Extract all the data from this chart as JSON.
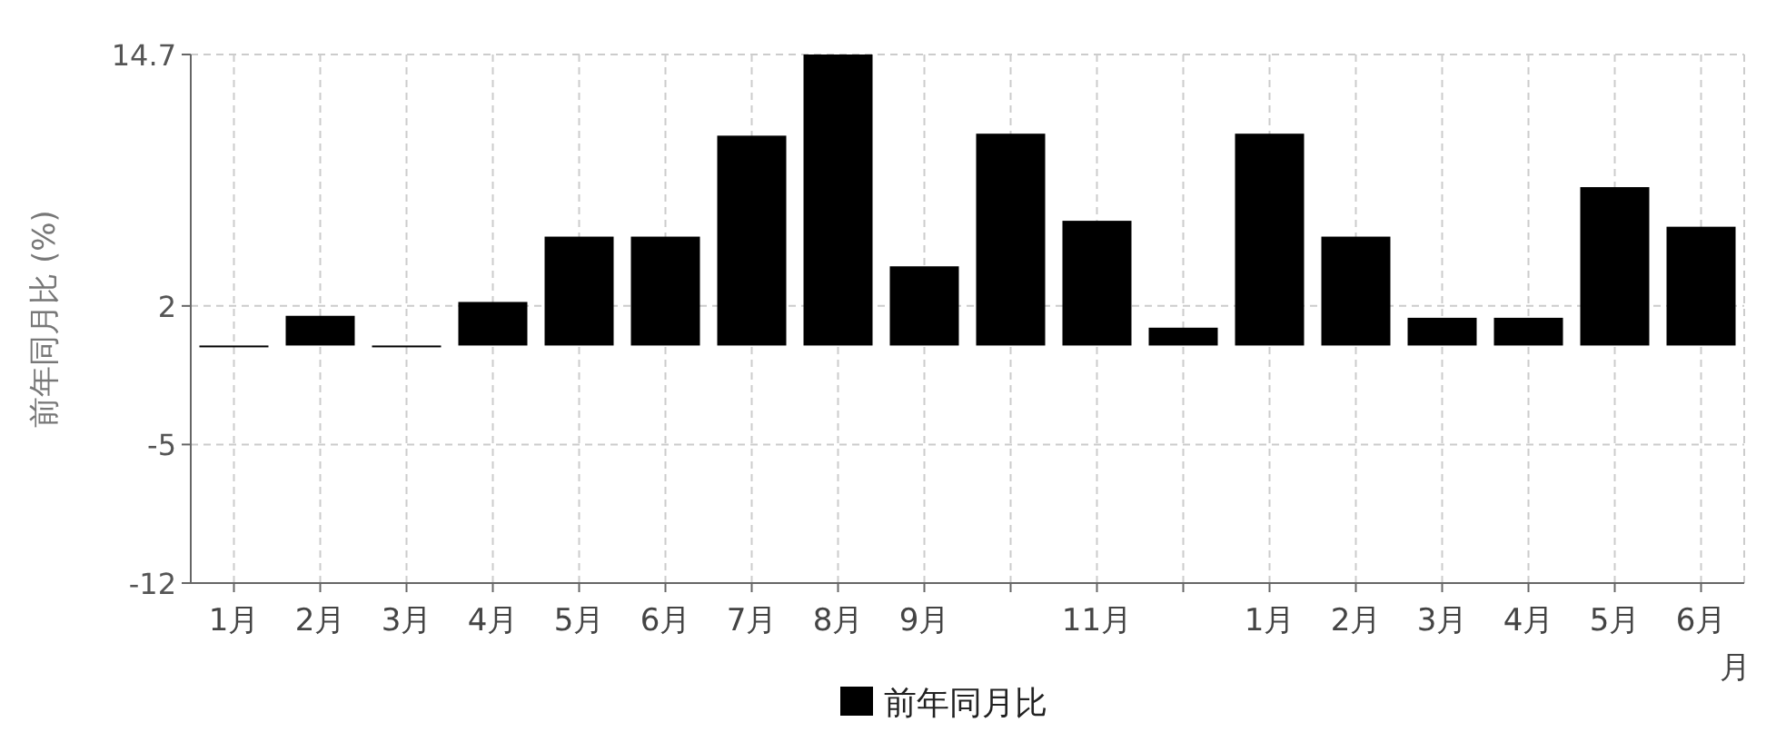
{
  "chart_data": {
    "type": "bar",
    "xlabel": "月",
    "ylabel": "前年同月比 (%)",
    "categories": [
      "1月",
      "2月",
      "3月",
      "4月",
      "5月",
      "6月",
      "7月",
      "8月",
      "9月",
      null,
      "11月",
      null,
      "1月",
      "2月",
      "3月",
      "4月",
      "5月",
      "6月"
    ],
    "series": [
      {
        "name": "前年同月比",
        "color": "#000000",
        "values": [
          0,
          1.5,
          0,
          2.2,
          5.5,
          5.5,
          10.6,
          14.7,
          4.0,
          10.7,
          6.3,
          0.9,
          10.7,
          5.5,
          1.4,
          1.4,
          8.0,
          6.0
        ]
      }
    ],
    "ylim": [
      -12,
      14.7
    ],
    "yticks": [
      -12,
      -5,
      2,
      14.7
    ],
    "grid": true,
    "legend": "bottom"
  }
}
